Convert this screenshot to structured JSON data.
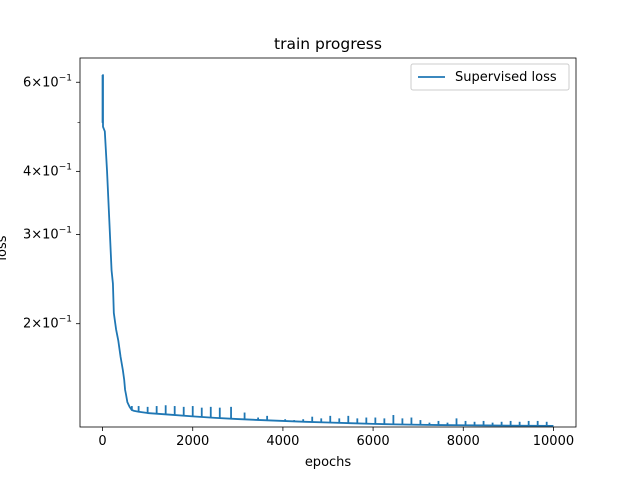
{
  "chart_data": {
    "type": "line",
    "title": "train progress",
    "xlabel": "epochs",
    "ylabel": "loss",
    "yscale": "log",
    "xlim": [
      -500,
      10500
    ],
    "ylim": [
      0.125,
      0.67
    ],
    "grid": false,
    "legend_position": "top-right",
    "x_ticks": [
      0,
      2000,
      4000,
      6000,
      8000,
      10000
    ],
    "x_tick_labels": [
      "0",
      "2000",
      "4000",
      "6000",
      "8000",
      "10000"
    ],
    "y_ticks": [
      0.2,
      0.3,
      0.4,
      0.6
    ],
    "y_tick_labels": [
      {
        "base": "2×10",
        "exp": "−1"
      },
      {
        "base": "3×10",
        "exp": "−1"
      },
      {
        "base": "4×10",
        "exp": "−1"
      },
      {
        "base": "6×10",
        "exp": "−1"
      }
    ],
    "y_minor_ticks": [
      0.5
    ],
    "series": [
      {
        "name": "Supervised loss",
        "color": "#1f77b4",
        "x": [
          0,
          0,
          10,
          10,
          50,
          100,
          150,
          200,
          210,
          230,
          250,
          300,
          350,
          400,
          450,
          480,
          500,
          520,
          550,
          600,
          650,
          700,
          800,
          1000,
          1500,
          2000,
          2500,
          3000,
          3500,
          4000,
          4500,
          5000,
          5500,
          6000,
          6500,
          7000,
          7500,
          8000,
          8500,
          9000,
          9500,
          10000
        ],
        "y": [
          0.62,
          0.5,
          0.62,
          0.49,
          0.48,
          0.4,
          0.32,
          0.255,
          0.25,
          0.24,
          0.21,
          0.195,
          0.185,
          0.172,
          0.162,
          0.155,
          0.148,
          0.145,
          0.14,
          0.137,
          0.135,
          0.1345,
          0.134,
          0.1332,
          0.1322,
          0.1312,
          0.1303,
          0.1296,
          0.129,
          0.1285,
          0.128,
          0.1276,
          0.1272,
          0.1268,
          0.1265,
          0.1263,
          0.1261,
          0.126,
          0.1259,
          0.1258,
          0.1257,
          0.1256
        ],
        "spike_epochs": [
          650,
          800,
          1000,
          1200,
          1400,
          1600,
          1800,
          2000,
          2200,
          2400,
          2600,
          2850,
          3150,
          3450,
          3650,
          3850,
          4050,
          4250,
          4450,
          4650,
          4850,
          5050,
          5250,
          5450,
          5650,
          5850,
          6050,
          6250,
          6450,
          6650,
          6850,
          7050,
          7250,
          7450,
          7650,
          7850,
          8050,
          8250,
          8450,
          8650,
          8850,
          9050,
          9250,
          9450,
          9650,
          9850
        ],
        "spike_values": [
          0.1375,
          0.1375,
          0.137,
          0.1375,
          0.138,
          0.1375,
          0.137,
          0.1375,
          0.1365,
          0.137,
          0.1365,
          0.137,
          0.1335,
          0.1305,
          0.1315,
          0.129,
          0.1295,
          0.129,
          0.1295,
          0.131,
          0.13,
          0.1315,
          0.13,
          0.1315,
          0.13,
          0.1305,
          0.1305,
          0.13,
          0.132,
          0.13,
          0.1305,
          0.129,
          0.1275,
          0.1285,
          0.1275,
          0.13,
          0.1285,
          0.128,
          0.1285,
          0.1275,
          0.128,
          0.1285,
          0.128,
          0.1285,
          0.1285,
          0.128
        ]
      }
    ]
  }
}
